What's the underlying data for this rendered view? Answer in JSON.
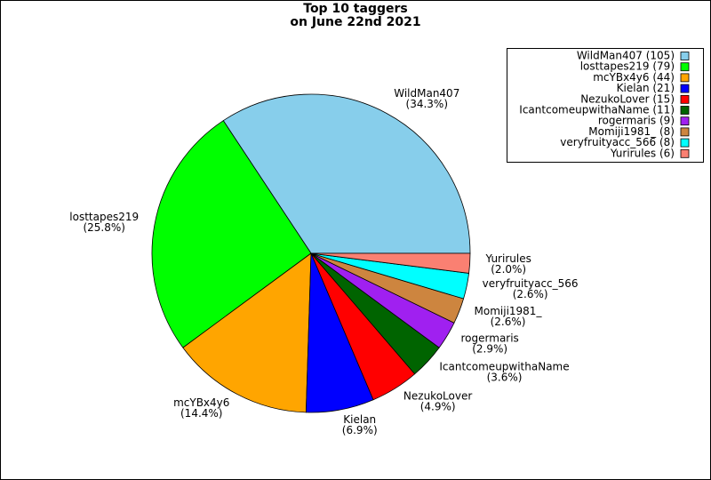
{
  "chart_data": {
    "type": "pie",
    "title_lines": [
      "Top 10 taggers",
      "on June 22nd 2021"
    ],
    "categories": [
      "WildMan407",
      "losttapes219",
      "mcYBx4y6",
      "Kielan",
      "NezukoLover",
      "IcantcomeupwithaName",
      "rogermaris",
      "Momiji1981_",
      "veryfruityacc_566",
      "Yurirules"
    ],
    "values": [
      34.3,
      25.8,
      14.4,
      6.9,
      4.9,
      3.6,
      2.9,
      2.6,
      2.6,
      2.0
    ],
    "value_labels": [
      "(34.3%)",
      "(25.8%)",
      "(14.4%)",
      "(6.9%)",
      "(4.9%)",
      "(3.6%)",
      "(2.9%)",
      "(2.6%)",
      "(2.6%)",
      "(2.0%)"
    ],
    "legend_labels": [
      "WildMan407 (105)",
      "losttapes219 (79)",
      "mcYBx4y6 (44)",
      "Kielan (21)",
      "NezukoLover (15)",
      "IcantcomeupwithaName (11)",
      "rogermaris (9)",
      "Momiji1981_ (8)",
      "veryfruityacc_566 (8)",
      "Yurirules (6)"
    ],
    "colors": [
      "#87ceeb",
      "#00ff00",
      "#ffa500",
      "#0000ff",
      "#ff0000",
      "#006400",
      "#a020f0",
      "#cd853f",
      "#00ffff",
      "#fa8072"
    ],
    "legend": "upper right"
  }
}
